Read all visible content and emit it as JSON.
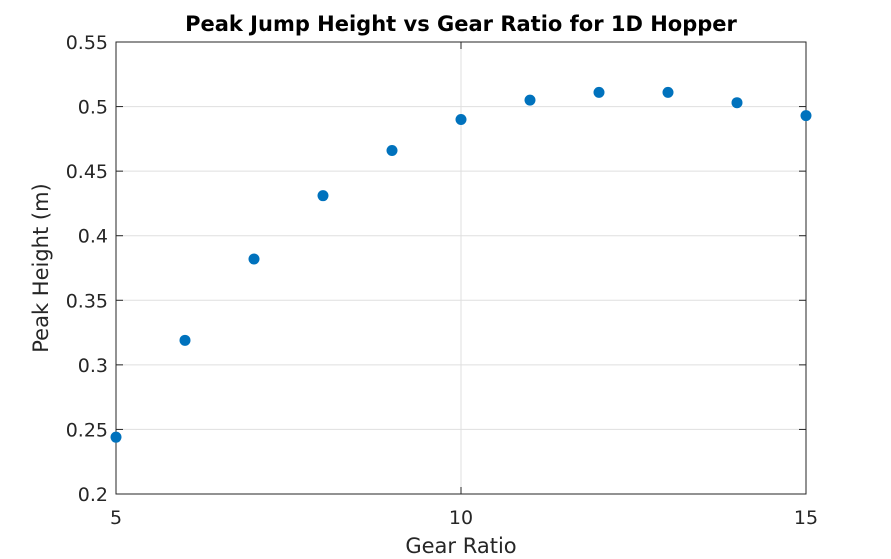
{
  "chart_data": {
    "type": "scatter",
    "title": "Peak Jump Height vs Gear Ratio for 1D Hopper",
    "xlabel": "Gear Ratio",
    "ylabel": "Peak Height (m)",
    "xlim": [
      5,
      15
    ],
    "ylim": [
      0.2,
      0.55
    ],
    "xticks": [
      5,
      10,
      15
    ],
    "xtick_labels": [
      "5",
      "10",
      "15"
    ],
    "yticks": [
      0.2,
      0.25,
      0.3,
      0.35,
      0.4,
      0.45,
      0.5,
      0.55
    ],
    "ytick_labels": [
      "0.2",
      "0.25",
      "0.3",
      "0.35",
      "0.4",
      "0.45",
      "0.5",
      "0.55"
    ],
    "grid": true,
    "series": [
      {
        "color": "#0072BD",
        "x": [
          5,
          6,
          7,
          8,
          9,
          10,
          11,
          12,
          13,
          14,
          15
        ],
        "y": [
          0.244,
          0.319,
          0.382,
          0.431,
          0.466,
          0.49,
          0.505,
          0.511,
          0.511,
          0.503,
          0.493
        ]
      }
    ]
  }
}
